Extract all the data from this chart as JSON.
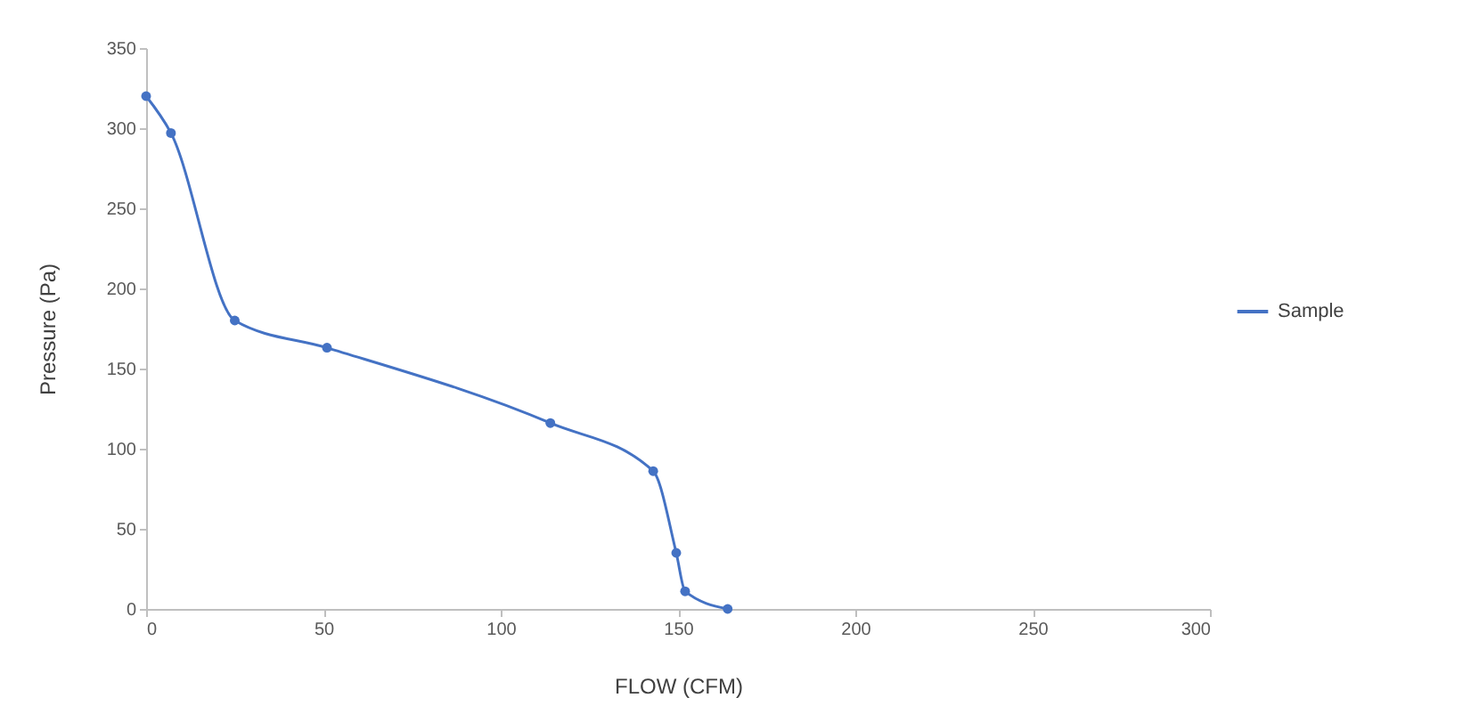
{
  "chart_data": {
    "type": "line",
    "xlabel": "FLOW (CFM)",
    "ylabel": "Pressure (Pa)",
    "x": [
      0,
      7,
      25,
      51,
      114,
      143,
      149.5,
      152,
      164
    ],
    "series": [
      {
        "name": "Sample",
        "color": "#4472c4",
        "values": [
          320,
          297,
          180,
          163,
          116,
          86,
          35,
          11,
          0
        ]
      }
    ],
    "xlim": [
      0,
      300
    ],
    "xticks": [
      0,
      50,
      100,
      150,
      200,
      250,
      300
    ],
    "ylim": [
      0,
      350
    ],
    "yticks": [
      0,
      50,
      100,
      150,
      200,
      250,
      300,
      350
    ],
    "grid": false,
    "legend": "right",
    "marker": "circle",
    "line_style": "solid"
  }
}
